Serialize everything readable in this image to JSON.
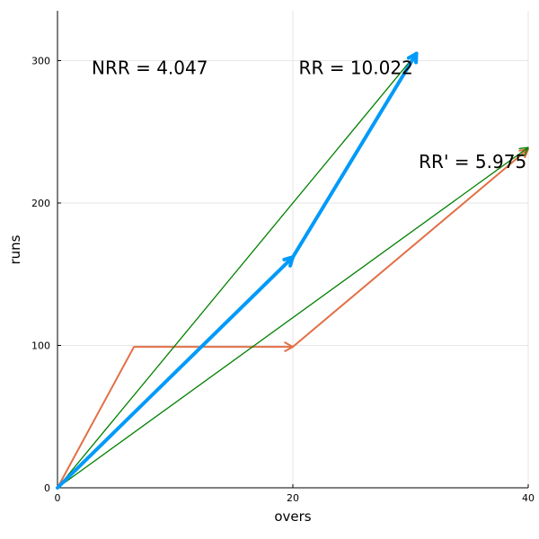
{
  "chart_data": {
    "type": "line",
    "xlabel": "overs",
    "ylabel": "runs",
    "xlim": [
      0,
      40
    ],
    "ylim": [
      0,
      335
    ],
    "x_ticks": [
      0,
      20,
      40
    ],
    "y_ticks": [
      0,
      100,
      200,
      300
    ],
    "grid": true,
    "series": [
      {
        "color": "#e26f46",
        "points": [
          [
            0,
            0
          ],
          [
            6.5,
            99
          ],
          [
            20,
            99
          ]
        ],
        "arrow": true,
        "width": 2
      },
      {
        "color": "#e26f46",
        "points": [
          [
            20,
            99
          ],
          [
            40,
            238
          ]
        ],
        "arrow": true,
        "width": 2
      },
      {
        "color": "#008000",
        "points": [
          [
            0,
            0
          ],
          [
            30.5,
            305
          ]
        ],
        "arrow": true,
        "width": 1.3
      },
      {
        "color": "#008000",
        "points": [
          [
            0,
            0
          ],
          [
            40,
            239
          ]
        ],
        "arrow": true,
        "width": 1.3
      },
      {
        "color": "#009af9",
        "points": [
          [
            0,
            0
          ],
          [
            20,
            162
          ]
        ],
        "arrow": true,
        "width": 4
      },
      {
        "color": "#009af9",
        "points": [
          [
            20,
            162
          ],
          [
            30.5,
            305
          ]
        ],
        "arrow": true,
        "width": 4
      }
    ],
    "annotations": [
      {
        "text": "NRR = 4.047",
        "x": 2.9,
        "y": 295
      },
      {
        "text": "RR = 10.022",
        "x": 20.5,
        "y": 295
      },
      {
        "text": "RR' = 5.975",
        "x": 30.7,
        "y": 229
      }
    ]
  }
}
